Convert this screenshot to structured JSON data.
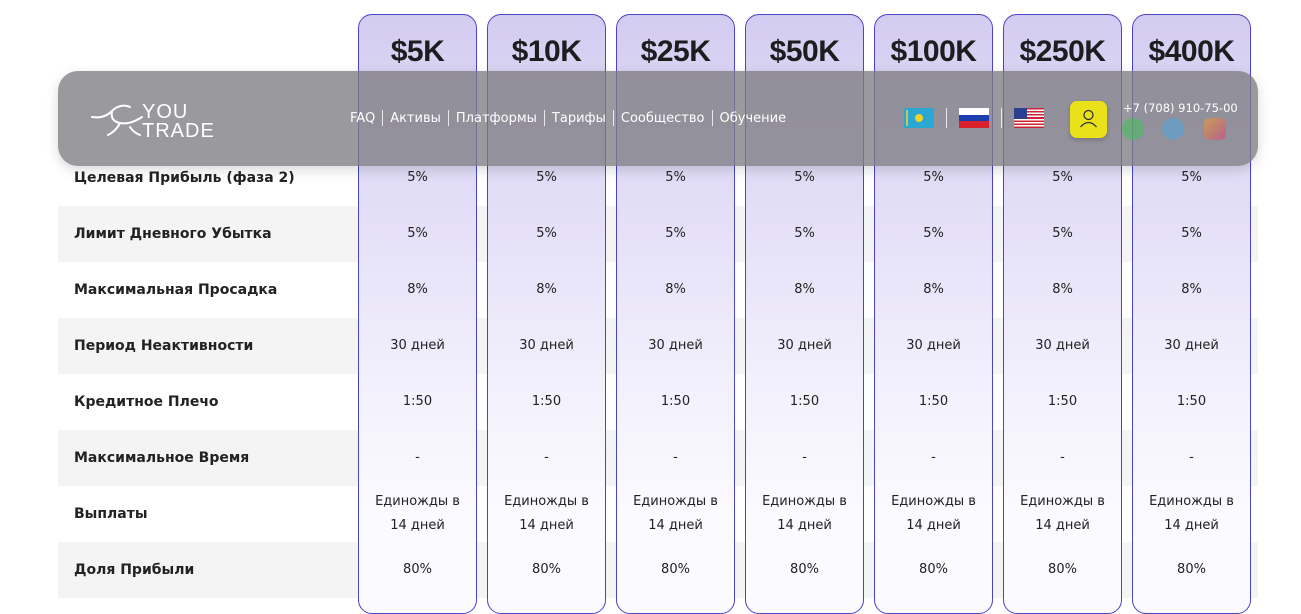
{
  "header": {
    "logo_top": "YOU",
    "logo_bottom": "TRADE",
    "nav": [
      "FAQ",
      "Активы",
      "Платформы",
      "Тарифы",
      "Сообщество",
      "Обучение"
    ],
    "phone": "+7 (708) 910-75-00",
    "flags": [
      "kz-flag-icon",
      "ru-flag-icon",
      "us-flag-icon"
    ],
    "socials": [
      "whatsapp-icon",
      "telegram-icon",
      "instagram-icon"
    ],
    "user_icon": "user-icon",
    "accent_color": "#e9e21a"
  },
  "plans": [
    "$5K",
    "$10K",
    "$25K",
    "$50K",
    "$100K",
    "$250K",
    "$400K"
  ],
  "rows": [
    {
      "label": "Целевая Прибыль (фаза 2)",
      "value": "5%"
    },
    {
      "label": "Лимит Дневного Убытка",
      "value": "5%"
    },
    {
      "label": "Максимальная Просадка",
      "value": "8%"
    },
    {
      "label": "Период Неактивности",
      "value": "30 дней"
    },
    {
      "label": "Кредитное Плечо",
      "value": "1:50"
    },
    {
      "label": "Максимальное Время",
      "value": "-"
    },
    {
      "label": "Выплаты",
      "value_line1": "Единожды в",
      "value_line2": "14 дней"
    },
    {
      "label": "Доля Прибыли",
      "value": "80%"
    }
  ],
  "colors": {
    "plan_border": "#4b44c9",
    "plan_fill": "#d3ccf1",
    "row_shade": "#f4f4f5"
  }
}
